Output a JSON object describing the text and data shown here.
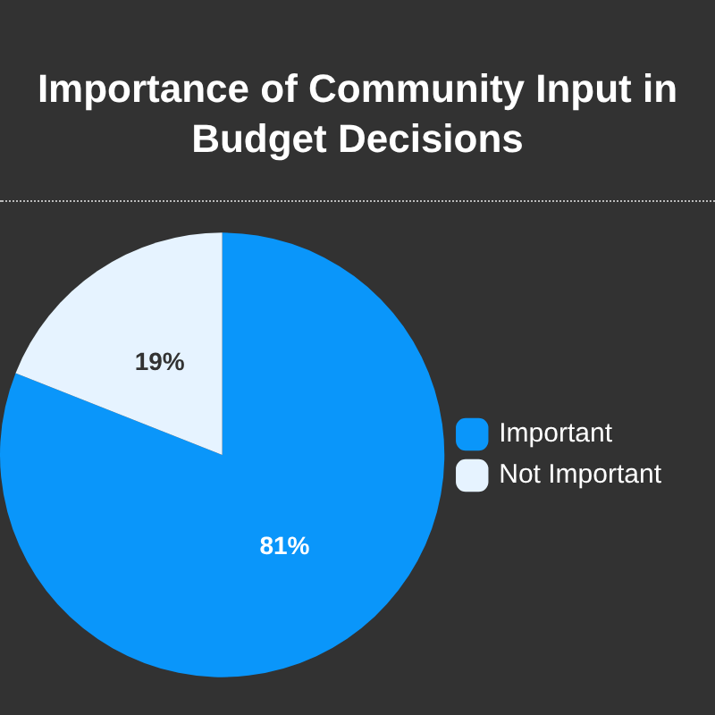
{
  "chart_data": {
    "type": "pie",
    "title": "Importance of Community Input in Budget Decisions",
    "categories": [
      "Important",
      "Not Important"
    ],
    "values": [
      81,
      19
    ],
    "colors": [
      "#0a96fa",
      "#e6f3ff"
    ],
    "value_labels": [
      "81%",
      "19%"
    ],
    "legend": "right"
  }
}
